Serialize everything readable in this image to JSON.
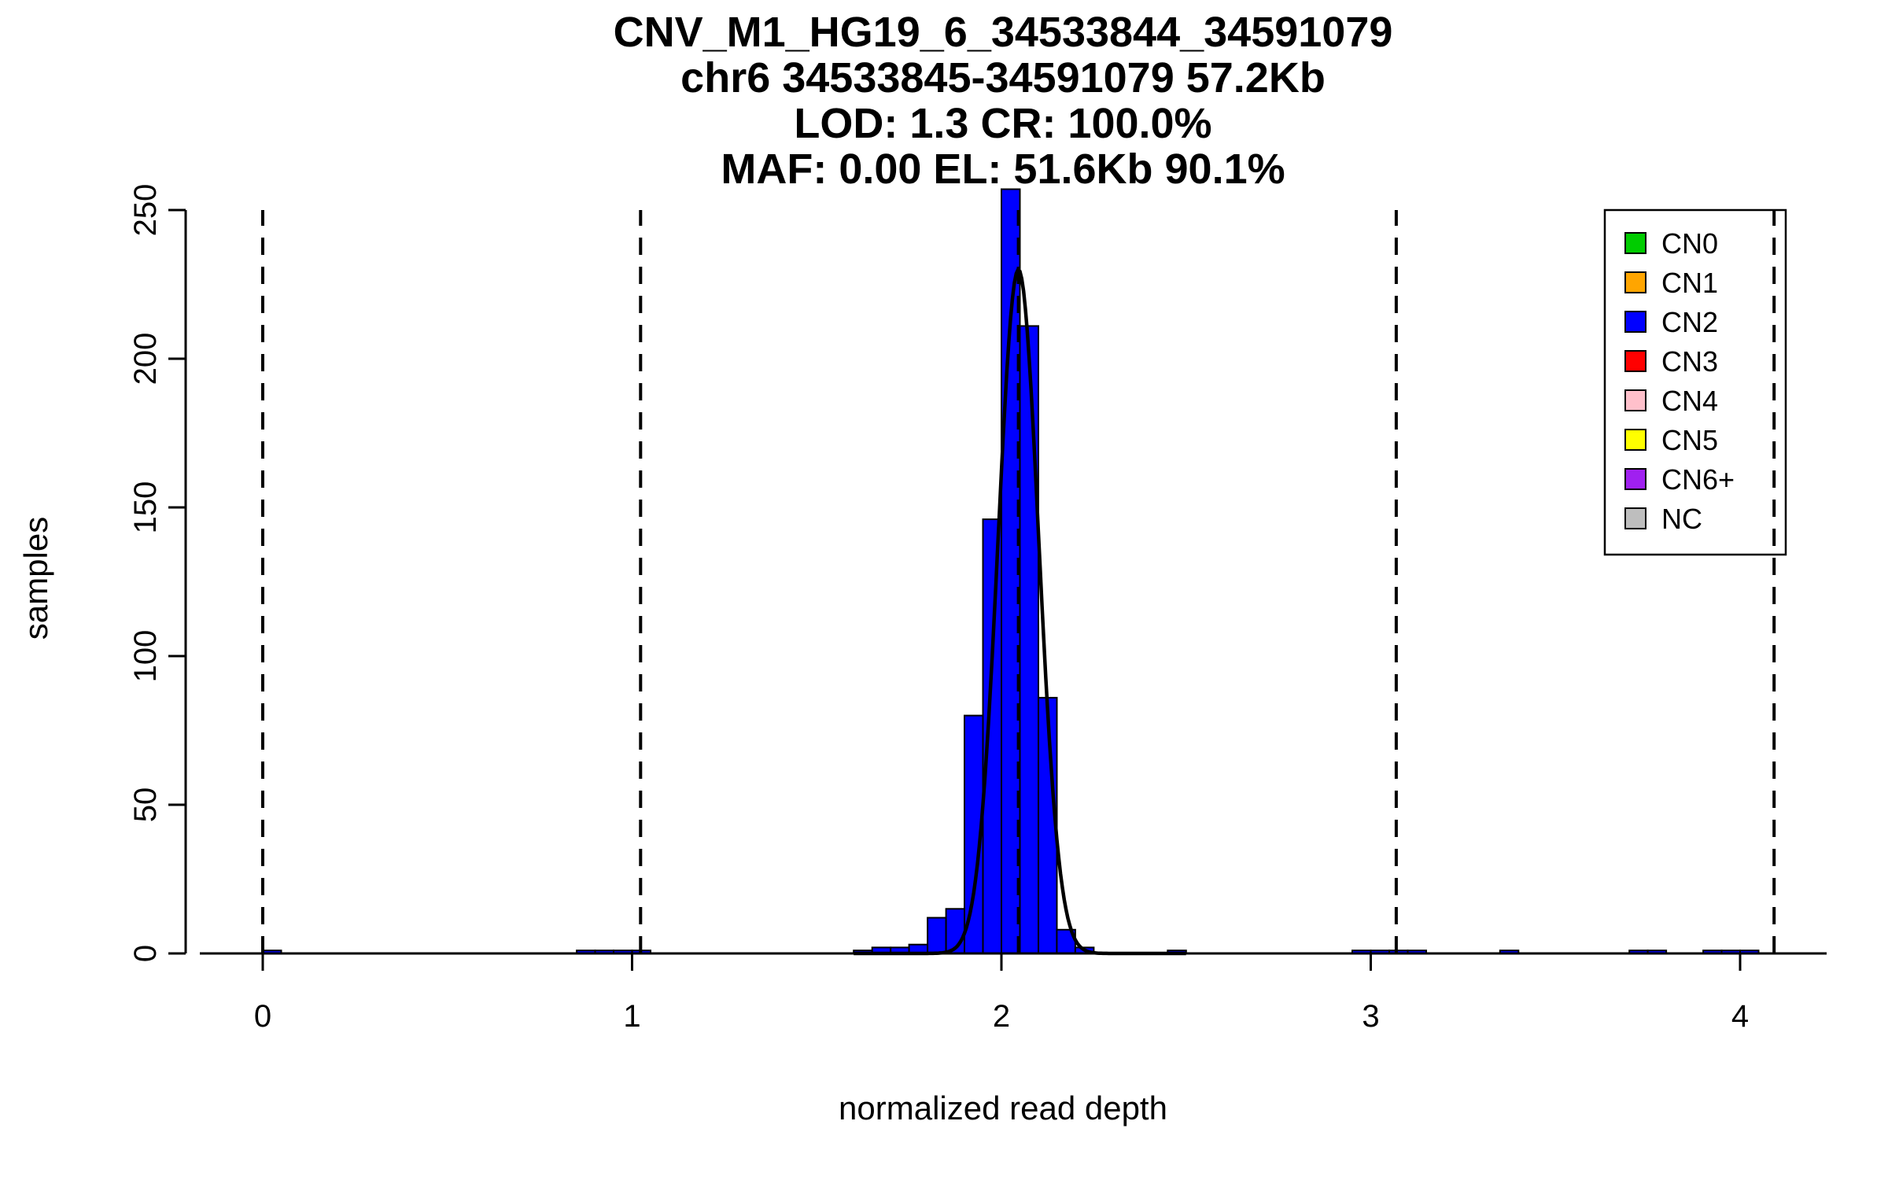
{
  "page": {
    "background": "#FFFFFF"
  },
  "chart_data": {
    "type": "histogram",
    "title_lines": [
      "CNV_M1_HG19_6_34533844_34591079",
      "chr6 34533845-34591079 57.2Kb",
      "LOD: 1.3 CR: 100.0%",
      "MAF: 0.00 EL: 51.6Kb 90.1%"
    ],
    "xlabel": "normalized read depth",
    "ylabel": "samples",
    "x_ticks": [
      0,
      1,
      2,
      3,
      4
    ],
    "y_ticks": [
      0,
      50,
      100,
      150,
      200,
      250
    ],
    "xlim": [
      -0.2,
      4.3
    ],
    "ylim": [
      0,
      250
    ],
    "grid": false,
    "bin_width": 0.05,
    "bar_fill": "#0000FF",
    "bar_stroke": "#000000",
    "bars": [
      {
        "x": 0.0,
        "count": 1
      },
      {
        "x": 0.85,
        "count": 1
      },
      {
        "x": 0.9,
        "count": 1
      },
      {
        "x": 0.95,
        "count": 1
      },
      {
        "x": 1.0,
        "count": 1
      },
      {
        "x": 1.6,
        "count": 1
      },
      {
        "x": 1.65,
        "count": 2
      },
      {
        "x": 1.7,
        "count": 2
      },
      {
        "x": 1.75,
        "count": 3
      },
      {
        "x": 1.8,
        "count": 12
      },
      {
        "x": 1.85,
        "count": 15
      },
      {
        "x": 1.9,
        "count": 80
      },
      {
        "x": 1.95,
        "count": 146
      },
      {
        "x": 2.0,
        "count": 257
      },
      {
        "x": 2.05,
        "count": 211
      },
      {
        "x": 2.1,
        "count": 86
      },
      {
        "x": 2.15,
        "count": 8
      },
      {
        "x": 2.2,
        "count": 2
      },
      {
        "x": 2.45,
        "count": 1
      },
      {
        "x": 2.95,
        "count": 1
      },
      {
        "x": 3.0,
        "count": 1
      },
      {
        "x": 3.05,
        "count": 1
      },
      {
        "x": 3.1,
        "count": 1
      },
      {
        "x": 3.35,
        "count": 1
      },
      {
        "x": 3.7,
        "count": 1
      },
      {
        "x": 3.75,
        "count": 1
      },
      {
        "x": 3.9,
        "count": 1
      },
      {
        "x": 3.95,
        "count": 1
      },
      {
        "x": 4.0,
        "count": 1
      }
    ],
    "fit_curve": {
      "mean": 2.046,
      "sd": 0.055,
      "peak": 230,
      "color": "#000000"
    },
    "dashed_lines_x": [
      0,
      1.023,
      2.046,
      3.069,
      4.092
    ],
    "legend_position": "top-right",
    "legend": [
      {
        "label": "CN0",
        "color": "#00CC00"
      },
      {
        "label": "CN1",
        "color": "#FFA500"
      },
      {
        "label": "CN2",
        "color": "#0000FF"
      },
      {
        "label": "CN3",
        "color": "#FF0000"
      },
      {
        "label": "CN4",
        "color": "#FFC0CB"
      },
      {
        "label": "CN5",
        "color": "#FFFF00"
      },
      {
        "label": "CN6+",
        "color": "#A020F0"
      },
      {
        "label": "NC",
        "color": "#BEBEBE"
      }
    ]
  }
}
